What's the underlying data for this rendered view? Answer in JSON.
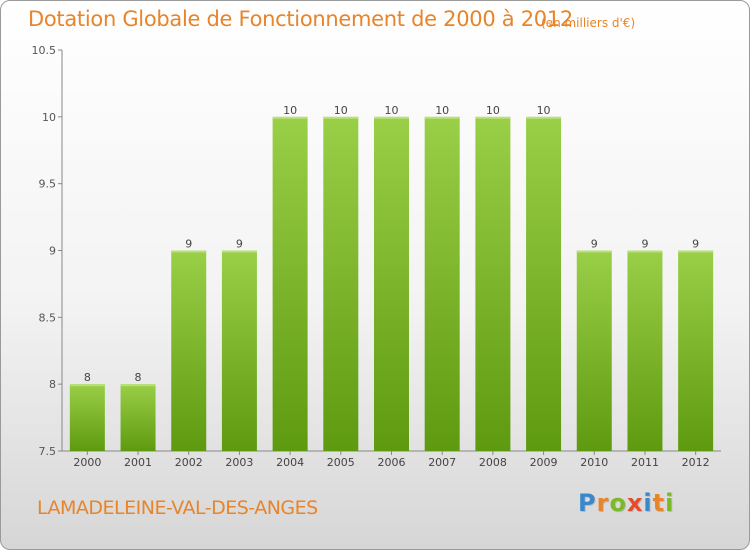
{
  "header": {
    "title": "Dotation Globale de Fonctionnement de 2000 à 2012",
    "unit": "(en milliers d'€)"
  },
  "footer": {
    "commune": "LAMADELEINE-VAL-DES-ANGES",
    "logo_letters": [
      "P",
      "r",
      "o",
      "x",
      "i",
      "t",
      "i"
    ],
    "logo_colors": [
      "#3a88c9",
      "#e8842a",
      "#7cb928",
      "#e84b2a",
      "#3a88c9",
      "#e8842a",
      "#7cb928"
    ]
  },
  "colors": {
    "bar_top": "#9acf48",
    "bar_bottom": "#5e9a10",
    "text": "#e8842a"
  },
  "chart_data": {
    "type": "bar",
    "title": "Dotation Globale de Fonctionnement de 2000 à 2012",
    "subtitle": "(en milliers d'€)",
    "categories": [
      "2000",
      "2001",
      "2002",
      "2003",
      "2004",
      "2005",
      "2006",
      "2007",
      "2008",
      "2009",
      "2010",
      "2011",
      "2012"
    ],
    "values": [
      8,
      8,
      9,
      9,
      10,
      10,
      10,
      10,
      10,
      10,
      9,
      9,
      9
    ],
    "labels": [
      "8",
      "8",
      "9",
      "9",
      "10",
      "10",
      "10",
      "10",
      "10",
      "10",
      "9",
      "9",
      "9"
    ],
    "ylim": [
      7.5,
      10.5
    ],
    "yticks": [
      7.5,
      8,
      8.5,
      9,
      9.5,
      10,
      10.5
    ],
    "ytick_labels": [
      "7.5",
      "8",
      "8.5",
      "9",
      "9.5",
      "10",
      "10.5"
    ],
    "xlabel": "",
    "ylabel": "",
    "grid": false,
    "legend": "none"
  }
}
